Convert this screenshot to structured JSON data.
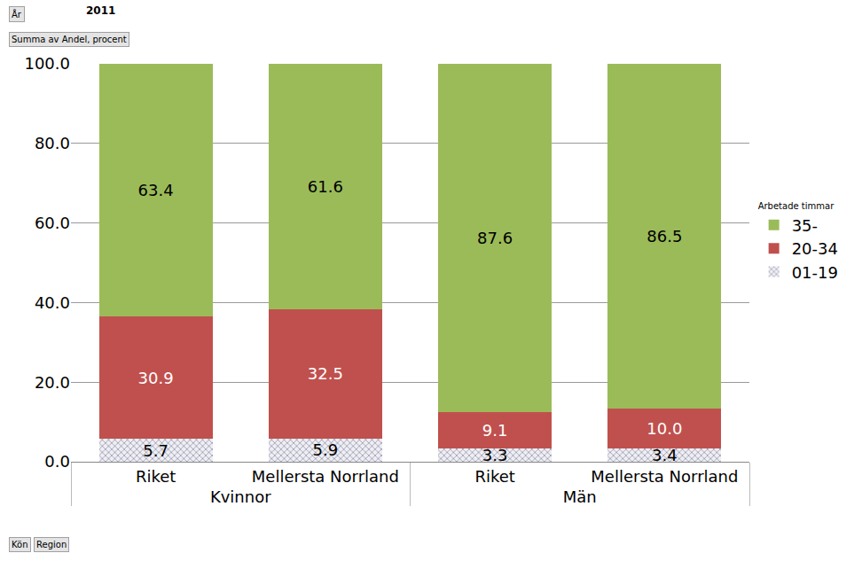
{
  "chart_data": {
    "type": "bar",
    "stacked": true,
    "data_labels": true,
    "grid": true,
    "legend": "right",
    "legend_title": "Arbetade timmar",
    "annotations": [
      "År",
      "2011",
      "Summa av Andel, procent",
      "Kön",
      "Region"
    ],
    "groups": [
      "Kvinnor",
      "Kvinnor",
      "Män",
      "Män"
    ],
    "categories": [
      "Riket",
      "Mellersta Norrland",
      "Riket",
      "Mellersta Norrland"
    ],
    "ylim": [
      0,
      100
    ],
    "yticks": [
      {
        "value": 0,
        "label": "0.0"
      },
      {
        "value": 20,
        "label": "20.0"
      },
      {
        "value": 40,
        "label": "40.0"
      },
      {
        "value": 60,
        "label": "60.0"
      },
      {
        "value": 80,
        "label": "80.0"
      },
      {
        "value": 100,
        "label": "100.0"
      }
    ],
    "series": [
      {
        "name": "01-19",
        "color": "#c9c9d6",
        "marker": "hatch",
        "values": [
          5.7,
          5.9,
          3.3,
          3.4
        ],
        "value_labels": [
          "5.7",
          "5.9",
          "3.3",
          "3.4"
        ]
      },
      {
        "name": "20-34",
        "color": "#c0504d",
        "values": [
          30.9,
          32.5,
          9.1,
          10.0
        ],
        "value_labels": [
          "30.9",
          "32.5",
          "9.1",
          "10.0"
        ]
      },
      {
        "name": "35-",
        "color": "#9bbb59",
        "values": [
          63.4,
          61.6,
          87.6,
          86.5
        ],
        "value_labels": [
          "63.4",
          "61.6",
          "87.6",
          "86.5"
        ]
      }
    ]
  }
}
